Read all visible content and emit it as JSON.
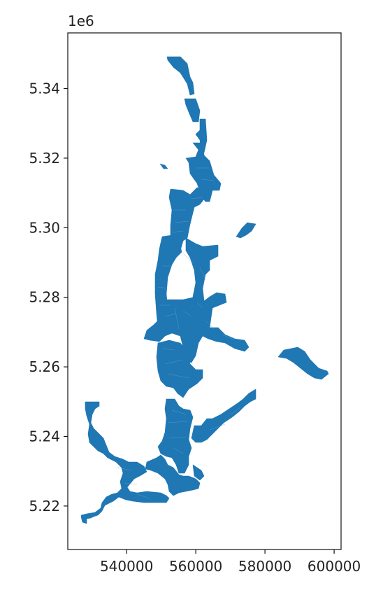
{
  "chart_data": {
    "type": "map",
    "offset_label": "1e6",
    "xlim": [
      523000,
      602000
    ],
    "ylim": [
      5207500,
      5356000
    ],
    "x_ticks": [
      540000,
      560000,
      580000,
      600000
    ],
    "x_tick_labels": [
      "540000",
      "560000",
      "580000",
      "600000"
    ],
    "y_ticks": [
      5220000,
      5240000,
      5260000,
      5280000,
      5300000,
      5320000,
      5340000
    ],
    "y_tick_labels": [
      "5.22",
      "5.24",
      "5.26",
      "5.28",
      "5.30",
      "5.32",
      "5.34"
    ],
    "fill_color": "#1f77b4",
    "grid": false,
    "legend": "none"
  }
}
